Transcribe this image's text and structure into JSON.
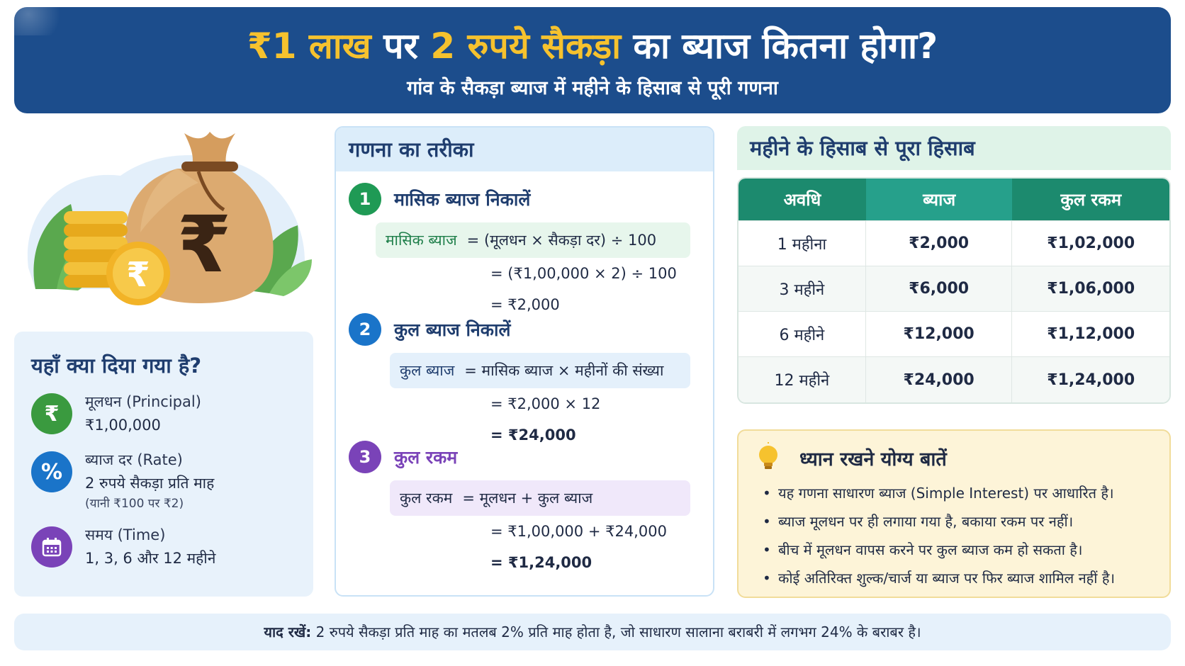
{
  "header": {
    "title_part1": "₹1 लाख",
    "title_part2": " पर ",
    "title_part3": "2 रुपये सैकड़ा",
    "title_part4": " का ब्याज कितना होगा?",
    "subtitle": "गांव के सैकड़ा ब्याज में महीने के हिसाब से पूरी गणना"
  },
  "hero": {
    "bag_symbol": "₹",
    "coin_symbol": "₹"
  },
  "given": {
    "title": "यहाँ क्या दिया गया है?",
    "items": [
      {
        "icon": "rupee-icon",
        "icon_glyph": "₹",
        "color": "#3a9a3f",
        "label": "मूलधन (Principal)",
        "value": "₹1,00,000",
        "note": ""
      },
      {
        "icon": "percent-icon",
        "icon_glyph": "%",
        "color": "#1a74c9",
        "label": "ब्याज दर (Rate)",
        "value": "2 रुपये सैकड़ा प्रति माह",
        "note": "(यानी ₹100 पर ₹2)"
      },
      {
        "icon": "calendar-icon",
        "icon_glyph": "",
        "color": "#7a43b8",
        "label": "समय (Time)",
        "value": "1, 3, 6 और 12 महीने",
        "note": ""
      }
    ]
  },
  "calc": {
    "title": "गणना का तरीका",
    "steps": [
      {
        "num": "1",
        "color": "#1f9a55",
        "title": "मासिक ब्याज निकालें",
        "box_bg": "#e7f6ec",
        "term_color": "#1f7f4a",
        "formula_term": "मासिक ब्याज",
        "formula_rest": "= (मूलधन × सैकड़ा दर) ÷ 100",
        "lines": [
          "= (₹1,00,000 × 2) ÷ 100",
          "= ₹2,000"
        ]
      },
      {
        "num": "2",
        "color": "#1a74c9",
        "title": "कुल ब्याज निकालें",
        "box_bg": "#e4f0fb",
        "term_color": "#1f3d6e",
        "formula_term": "कुल ब्याज",
        "formula_rest": "= मासिक ब्याज × महीनों की संख्या",
        "lines": [
          "= ₹2,000 × 12",
          "= ₹24,000"
        ]
      },
      {
        "num": "3",
        "color": "#7a43b8",
        "title": "कुल रकम",
        "box_bg": "#f0e8fa",
        "term_color": "#1f2a44",
        "formula_term": "कुल रकम",
        "formula_rest": "= मूलधन + कुल ब्याज",
        "lines": [
          "= ₹1,00,000 + ₹24,000",
          "= ₹1,24,000"
        ]
      }
    ]
  },
  "monthly": {
    "title": "महीने के हिसाब से पूरा हिसाब",
    "columns": [
      "अवधि",
      "ब्याज",
      "कुल रकम"
    ],
    "rows": [
      [
        "1 महीना",
        "₹2,000",
        "₹1,02,000"
      ],
      [
        "3 महीने",
        "₹6,000",
        "₹1,06,000"
      ],
      [
        "6 महीने",
        "₹12,000",
        "₹1,12,000"
      ],
      [
        "12 महीने",
        "₹24,000",
        "₹1,24,000"
      ]
    ]
  },
  "notes": {
    "title": "ध्यान रखने योग्य बातें",
    "items": [
      "यह गणना साधारण ब्याज (Simple Interest) पर आधारित है।",
      "ब्याज मूलधन पर ही लगाया गया है, बकाया रकम पर नहीं।",
      "बीच में मूलधन वापस करने पर कुल ब्याज कम हो सकता है।",
      "कोई अतिरिक्त शुल्क/चार्ज या ब्याज पर फिर ब्याज शामिल नहीं है।"
    ]
  },
  "footer": {
    "label": "याद रखें:",
    "text": " 2 रुपये सैकड़ा प्रति माह का मतलब 2% प्रति माह होता है, जो साधारण सालाना बराबरी में लगभग 24% के बराबर है।"
  }
}
